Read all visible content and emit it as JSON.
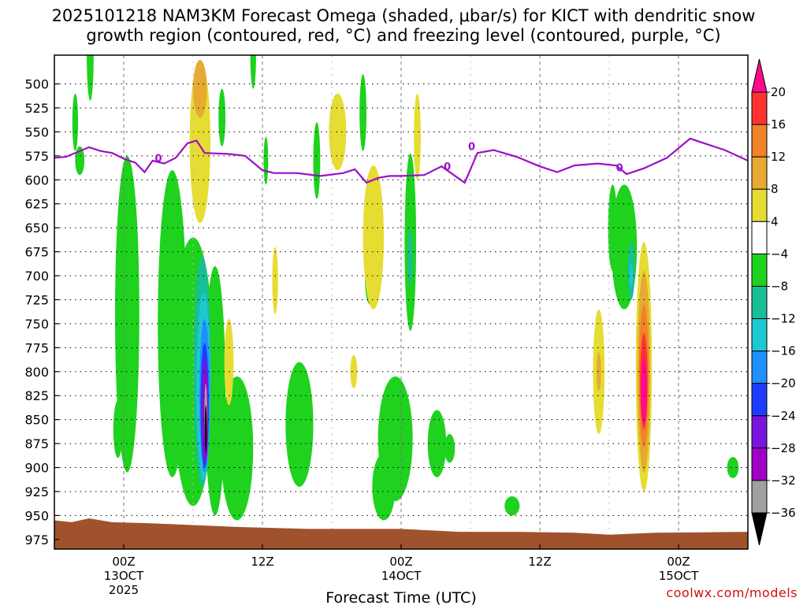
{
  "header": {
    "title_line1": "2025101218 NAM3KM Forecast Omega (shaded, μbar/s) for KICT with dendritic snow",
    "title_line2": "growth region (contoured, red, °C) and freezing level (contoured, purple, °C)"
  },
  "credit": "coolwx.com/models",
  "chart_data": {
    "type": "heatmap",
    "xlabel": "Forecast Time (UTC)",
    "x_ticks": [
      {
        "hours": 6,
        "label": "00Z",
        "sub1": "13OCT",
        "sub2": "2025"
      },
      {
        "hours": 18,
        "label": "12Z",
        "sub1": "",
        "sub2": ""
      },
      {
        "hours": 30,
        "label": "00Z",
        "sub1": "14OCT",
        "sub2": ""
      },
      {
        "hours": 42,
        "label": "12Z",
        "sub1": "",
        "sub2": ""
      },
      {
        "hours": 54,
        "label": "00Z",
        "sub1": "15OCT",
        "sub2": ""
      }
    ],
    "x_range_hours": [
      0,
      60
    ],
    "y_range_mb": [
      470,
      985
    ],
    "y_ticks": [
      500,
      525,
      550,
      575,
      600,
      625,
      650,
      675,
      700,
      725,
      750,
      775,
      800,
      825,
      850,
      875,
      900,
      925,
      950,
      975
    ],
    "grid": true,
    "colorbar": {
      "labels": [
        "20",
        "16",
        "12",
        "8",
        "4",
        "−4",
        "−8",
        "−12",
        "−16",
        "−20",
        "−24",
        "−28",
        "−32",
        "−36"
      ],
      "colors": [
        "#ff0a8c",
        "#ff3232",
        "#f08228",
        "#e6aa32",
        "#e6dc32",
        "#ffffff",
        "#1ed21e",
        "#19be96",
        "#1ec8d2",
        "#1e90ff",
        "#1e3cff",
        "#7814dc",
        "#a000c8",
        "#a0a0a0",
        "#000000"
      ]
    },
    "ground_color": "#a0522d",
    "freezing_level_color": "#9b10c8",
    "freezing_level_label": "0",
    "freezing_level": [
      [
        0,
        577
      ],
      [
        1,
        576
      ],
      [
        2,
        571
      ],
      [
        3,
        566
      ],
      [
        4,
        570
      ],
      [
        5,
        572
      ],
      [
        6,
        578
      ],
      [
        7,
        582
      ],
      [
        7.8,
        592
      ],
      [
        8.5,
        580
      ],
      [
        9.5,
        583
      ],
      [
        10.5,
        577
      ],
      [
        11.5,
        562
      ],
      [
        12.3,
        559
      ],
      [
        13,
        572
      ],
      [
        15,
        573
      ],
      [
        16.5,
        575
      ],
      [
        18,
        590
      ],
      [
        19,
        593
      ],
      [
        21,
        593
      ],
      [
        23,
        596
      ],
      [
        25,
        593
      ],
      [
        26,
        589
      ],
      [
        27,
        603
      ],
      [
        28,
        598
      ],
      [
        29,
        596
      ],
      [
        30,
        596
      ],
      [
        32,
        595
      ],
      [
        33.5,
        586
      ],
      [
        35.5,
        603
      ],
      [
        36.6,
        572
      ],
      [
        38,
        569
      ],
      [
        40,
        576
      ],
      [
        42,
        586
      ],
      [
        43.5,
        592
      ],
      [
        45,
        585
      ],
      [
        47,
        583
      ],
      [
        48.6,
        585
      ],
      [
        49.5,
        594
      ],
      [
        51,
        588
      ],
      [
        53,
        577
      ],
      [
        54,
        567
      ],
      [
        55,
        557
      ],
      [
        56,
        561
      ],
      [
        58,
        569
      ],
      [
        60,
        580
      ]
    ],
    "omega_cells": [
      {
        "t": 1.8,
        "p": 540,
        "w": 0.5,
        "h": 60,
        "v": -6
      },
      {
        "t": 2.2,
        "p": 580,
        "w": 0.8,
        "h": 30,
        "v": -6
      },
      {
        "t": 3.1,
        "p": 470,
        "w": 0.6,
        "h": 95,
        "v": -6
      },
      {
        "t": 6.3,
        "p": 740,
        "w": 2.1,
        "h": 330,
        "v": -6
      },
      {
        "t": 5.5,
        "p": 860,
        "w": 0.8,
        "h": 60,
        "v": -6
      },
      {
        "t": 10.2,
        "p": 750,
        "w": 2.5,
        "h": 320,
        "v": -6
      },
      {
        "t": 12.0,
        "p": 800,
        "w": 3.6,
        "h": 280,
        "v": -6
      },
      {
        "t": 13.9,
        "p": 820,
        "w": 1.8,
        "h": 260,
        "v": -6
      },
      {
        "t": 15.8,
        "p": 880,
        "w": 2.8,
        "h": 150,
        "v": -6
      },
      {
        "t": 14.5,
        "p": 535,
        "w": 0.6,
        "h": 60,
        "v": -6
      },
      {
        "t": 17.2,
        "p": 470,
        "w": 0.5,
        "h": 70,
        "v": -6
      },
      {
        "t": 18.3,
        "p": 580,
        "w": 0.4,
        "h": 50,
        "v": -6
      },
      {
        "t": 22.7,
        "p": 580,
        "w": 0.6,
        "h": 80,
        "v": -6
      },
      {
        "t": 21.2,
        "p": 855,
        "w": 2.4,
        "h": 130,
        "v": -6
      },
      {
        "t": 24.5,
        "p": 550,
        "w": 1.5,
        "h": 80,
        "v": 6
      },
      {
        "t": 26.7,
        "p": 530,
        "w": 0.6,
        "h": 80,
        "v": -6
      },
      {
        "t": 29.5,
        "p": 870,
        "w": 3.0,
        "h": 130,
        "v": -6
      },
      {
        "t": 28.5,
        "p": 920,
        "w": 2.0,
        "h": 70,
        "v": -6
      },
      {
        "t": 27.3,
        "p": 700,
        "w": 0.9,
        "h": 60,
        "v": -6
      },
      {
        "t": 30.8,
        "p": 665,
        "w": 1.0,
        "h": 185,
        "v": -6
      },
      {
        "t": 31.4,
        "p": 555,
        "w": 0.6,
        "h": 90,
        "v": 6
      },
      {
        "t": 33.1,
        "p": 875,
        "w": 1.6,
        "h": 70,
        "v": -6
      },
      {
        "t": 34.2,
        "p": 880,
        "w": 0.9,
        "h": 30,
        "v": -6
      },
      {
        "t": 28.8,
        "p": 875,
        "w": 0.6,
        "h": 40,
        "v": -6
      },
      {
        "t": 39.6,
        "p": 940,
        "w": 1.3,
        "h": 20,
        "v": -6
      },
      {
        "t": 49.3,
        "p": 670,
        "w": 2.2,
        "h": 130,
        "v": -6
      },
      {
        "t": 48.3,
        "p": 650,
        "w": 0.8,
        "h": 90,
        "v": -6
      },
      {
        "t": 58.7,
        "p": 900,
        "w": 1.0,
        "h": 22,
        "v": -6
      },
      {
        "t": 12.6,
        "p": 560,
        "w": 1.8,
        "h": 170,
        "v": 5
      },
      {
        "t": 12.6,
        "p": 505,
        "w": 1.2,
        "h": 60,
        "v": 10
      },
      {
        "t": 15.1,
        "p": 790,
        "w": 0.8,
        "h": 90,
        "v": 6
      },
      {
        "t": 19.1,
        "p": 705,
        "w": 0.5,
        "h": 70,
        "v": 6
      },
      {
        "t": 25.9,
        "p": 800,
        "w": 0.6,
        "h": 35,
        "v": 6
      },
      {
        "t": 27.6,
        "p": 660,
        "w": 1.8,
        "h": 150,
        "v": 6
      },
      {
        "t": 47.1,
        "p": 800,
        "w": 1.0,
        "h": 130,
        "v": 6
      },
      {
        "t": 47.1,
        "p": 800,
        "w": 0.4,
        "h": 40,
        "v": 10
      },
      {
        "t": 49.9,
        "p": 695,
        "w": 0.6,
        "h": 60,
        "v": -10
      },
      {
        "t": 49.9,
        "p": 700,
        "w": 0.3,
        "h": 25,
        "v": -14
      },
      {
        "t": 30.8,
        "p": 680,
        "w": 0.4,
        "h": 60,
        "v": -10
      },
      {
        "t": 12.8,
        "p": 800,
        "w": 1.5,
        "h": 240,
        "v": -10
      },
      {
        "t": 12.9,
        "p": 815,
        "w": 1.2,
        "h": 195,
        "v": -14
      },
      {
        "t": 13.0,
        "p": 825,
        "w": 0.9,
        "h": 160,
        "v": -18
      },
      {
        "t": 13.0,
        "p": 835,
        "w": 0.7,
        "h": 130,
        "v": -22
      },
      {
        "t": 13.0,
        "p": 840,
        "w": 0.55,
        "h": 110,
        "v": -26
      },
      {
        "t": 13.1,
        "p": 845,
        "w": 0.4,
        "h": 95,
        "v": -30
      },
      {
        "t": 13.1,
        "p": 845,
        "w": 0.25,
        "h": 65,
        "v": -34
      },
      {
        "t": 13.1,
        "p": 860,
        "w": 0.18,
        "h": 50,
        "v": -40
      },
      {
        "t": 51.0,
        "p": 795,
        "w": 1.4,
        "h": 260,
        "v": 6
      },
      {
        "t": 51.0,
        "p": 800,
        "w": 1.1,
        "h": 210,
        "v": 10
      },
      {
        "t": 51.0,
        "p": 805,
        "w": 0.85,
        "h": 150,
        "v": 14
      },
      {
        "t": 51.0,
        "p": 810,
        "w": 0.65,
        "h": 100,
        "v": 18
      },
      {
        "t": 51.0,
        "p": 820,
        "w": 0.5,
        "h": 70,
        "v": 22
      }
    ],
    "ground": [
      [
        0,
        955
      ],
      [
        1.5,
        957
      ],
      [
        3,
        953
      ],
      [
        5,
        957
      ],
      [
        8,
        958
      ],
      [
        10,
        959
      ],
      [
        16,
        962
      ],
      [
        22,
        964
      ],
      [
        30,
        964
      ],
      [
        35,
        967
      ],
      [
        40,
        967
      ],
      [
        45,
        968
      ],
      [
        48,
        970
      ],
      [
        52,
        968
      ],
      [
        60,
        967
      ]
    ]
  }
}
